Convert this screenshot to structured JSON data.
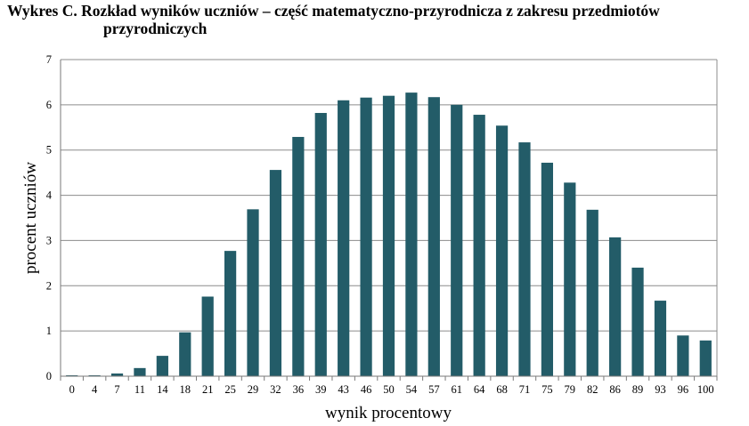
{
  "chart_data": {
    "type": "bar",
    "title_line1": "Wykres C. Rozkład wyników uczniów – część matematyczno-przyrodnicza z zakresu przedmiotów",
    "title_line2": "przyrodniczych",
    "xlabel": "wynik procentowy",
    "ylabel": "procent uczniów",
    "ylim": [
      0,
      7
    ],
    "yticks": [
      "0",
      "1",
      "2",
      "3",
      "4",
      "5",
      "6",
      "7"
    ],
    "grid": true,
    "bar_color": "#235c68",
    "categories": [
      "0",
      "4",
      "7",
      "11",
      "14",
      "18",
      "21",
      "25",
      "29",
      "32",
      "36",
      "39",
      "43",
      "46",
      "50",
      "54",
      "57",
      "61",
      "64",
      "68",
      "71",
      "75",
      "79",
      "82",
      "86",
      "89",
      "93",
      "96",
      "100"
    ],
    "values": [
      0.02,
      0.02,
      0.06,
      0.18,
      0.45,
      0.97,
      1.76,
      2.77,
      3.69,
      4.56,
      5.29,
      5.82,
      6.1,
      6.16,
      6.2,
      6.27,
      6.17,
      6.0,
      5.78,
      5.54,
      5.17,
      4.72,
      4.28,
      3.68,
      3.07,
      2.4,
      1.67,
      0.9,
      0.79
    ]
  }
}
